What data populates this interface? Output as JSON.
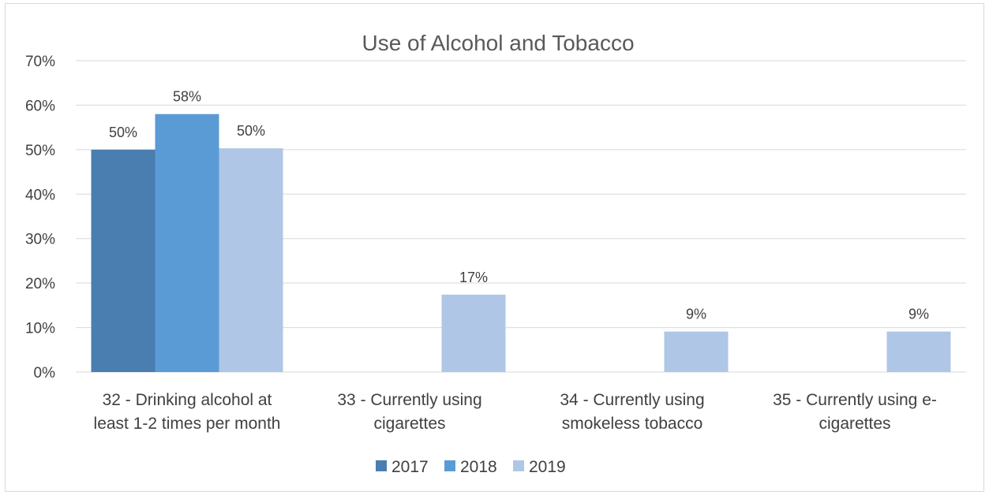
{
  "chart_data": {
    "type": "bar",
    "title": "Use of Alcohol and Tobacco",
    "xlabel": "",
    "ylabel": "",
    "ylim": [
      0,
      0.7
    ],
    "y_ticks": [
      "0%",
      "10%",
      "20%",
      "30%",
      "40%",
      "50%",
      "60%",
      "70%"
    ],
    "grid": true,
    "legend_position": "bottom",
    "categories": [
      [
        "32 - Drinking alcohol at",
        "least 1-2 times per month"
      ],
      [
        "33 - Currently using",
        "cigarettes"
      ],
      [
        "34 - Currently using",
        "smokeless tobacco"
      ],
      [
        "35 - Currently using e-",
        "cigarettes"
      ]
    ],
    "series": [
      {
        "name": "2017",
        "color": "#4a7eb0",
        "values": [
          0.5,
          null,
          null,
          null
        ],
        "labels": [
          "50%",
          "",
          "",
          ""
        ]
      },
      {
        "name": "2018",
        "color": "#5b9bd5",
        "values": [
          0.58,
          null,
          null,
          null
        ],
        "labels": [
          "58%",
          "",
          "",
          ""
        ]
      },
      {
        "name": "2019",
        "color": "#afc6e6",
        "values": [
          0.503,
          0.174,
          0.091,
          0.091
        ],
        "labels": [
          "50%",
          "17%",
          "9%",
          "9%"
        ]
      }
    ]
  }
}
